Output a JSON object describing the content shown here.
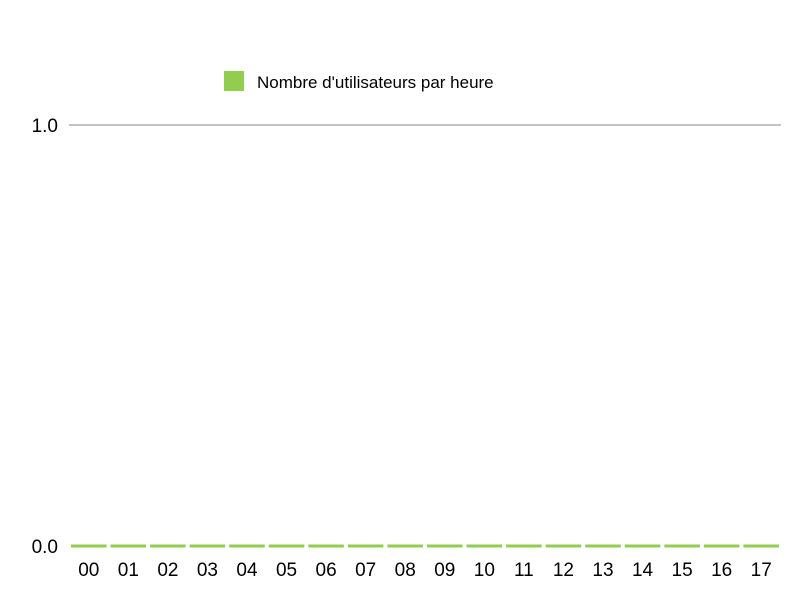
{
  "chart_data": {
    "type": "bar",
    "categories": [
      "00",
      "01",
      "02",
      "03",
      "04",
      "05",
      "06",
      "07",
      "08",
      "09",
      "10",
      "11",
      "12",
      "13",
      "14",
      "15",
      "16",
      "17"
    ],
    "series": [
      {
        "name": "Nombre d'utilisateurs par heure",
        "color": "#92cd50",
        "values": [
          0,
          0,
          0,
          0,
          0,
          0,
          0,
          0,
          0,
          0,
          0,
          0,
          0,
          0,
          0,
          0,
          0,
          0
        ]
      }
    ],
    "y_ticks": [
      "0.0",
      "1.0"
    ],
    "ylim": [
      0,
      1
    ],
    "legend_position": "top",
    "grid": true,
    "gridline_color": "#888888"
  }
}
